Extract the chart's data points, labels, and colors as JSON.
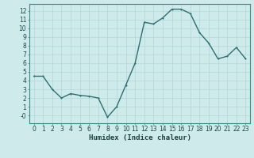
{
  "x": [
    0,
    1,
    2,
    3,
    4,
    5,
    6,
    7,
    8,
    9,
    10,
    11,
    12,
    13,
    14,
    15,
    16,
    17,
    18,
    19,
    20,
    21,
    22,
    23
  ],
  "y": [
    4.5,
    4.5,
    3.0,
    2.0,
    2.5,
    2.3,
    2.2,
    2.0,
    -0.2,
    1.0,
    3.5,
    6.0,
    10.7,
    10.5,
    11.2,
    12.2,
    12.2,
    11.7,
    9.5,
    8.3,
    6.5,
    6.8,
    7.8,
    6.5
  ],
  "xlabel": "Humidex (Indice chaleur)",
  "xlabel_fontsize": 6.5,
  "tick_labels": [
    "0",
    "1",
    "2",
    "3",
    "4",
    "5",
    "6",
    "7",
    "8",
    "9",
    "10",
    "11",
    "12",
    "13",
    "14",
    "15",
    "16",
    "17",
    "18",
    "19",
    "20",
    "21",
    "22",
    "23"
  ],
  "ytick_values": [
    0,
    1,
    2,
    3,
    4,
    5,
    6,
    7,
    8,
    9,
    10,
    11,
    12
  ],
  "ytick_labels": [
    "-0",
    "1",
    "2",
    "3",
    "4",
    "5",
    "6",
    "7",
    "8",
    "9",
    "10",
    "11",
    "12"
  ],
  "ylim": [
    -0.9,
    12.8
  ],
  "xlim": [
    -0.5,
    23.5
  ],
  "line_color": "#2d7070",
  "marker_color": "#2d7070",
  "bg_color": "#ceeaea",
  "grid_color_major": "#b0d8d8",
  "grid_color_minor": "#c4e4e4",
  "tick_fontsize": 5.5,
  "linewidth": 1.0,
  "markersize": 2.0
}
